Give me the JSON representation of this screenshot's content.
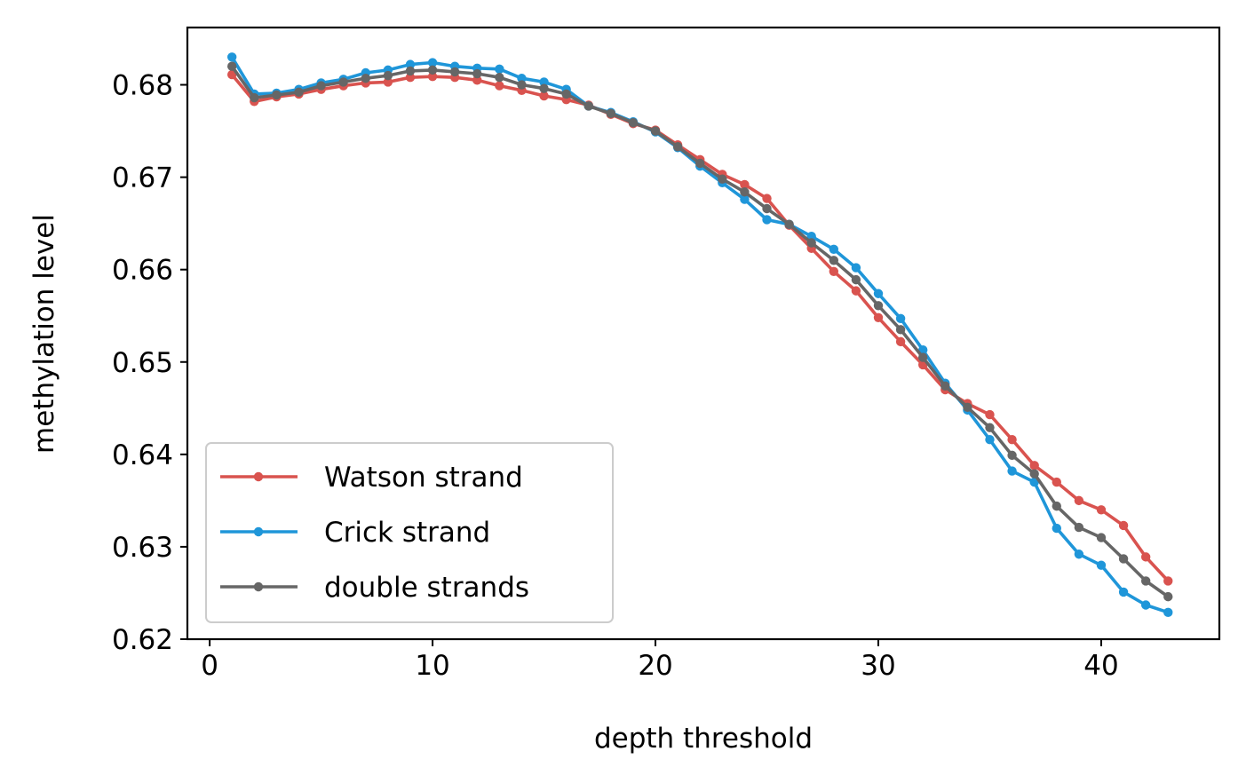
{
  "chart_data": {
    "type": "line",
    "title": "",
    "xlabel": "depth threshold",
    "ylabel": "methylation level",
    "xlim": [
      -1,
      45.3
    ],
    "ylim": [
      0.62,
      0.6862
    ],
    "xticks": [
      0,
      10,
      20,
      30,
      40
    ],
    "yticks": [
      0.62,
      0.63,
      0.64,
      0.65,
      0.66,
      0.67,
      0.68
    ],
    "grid": false,
    "legend_position": "lower-left",
    "x": [
      1,
      2,
      3,
      4,
      5,
      6,
      7,
      8,
      9,
      10,
      11,
      12,
      13,
      14,
      15,
      16,
      17,
      18,
      19,
      20,
      21,
      22,
      23,
      24,
      25,
      26,
      27,
      28,
      29,
      30,
      31,
      32,
      33,
      34,
      35,
      36,
      37,
      38,
      39,
      40,
      41,
      42,
      43
    ],
    "series": [
      {
        "name": "Watson strand",
        "color": "#d9534f",
        "values": [
          0.6811,
          0.6782,
          0.6787,
          0.679,
          0.6795,
          0.6799,
          0.6802,
          0.6803,
          0.6808,
          0.6809,
          0.6808,
          0.6805,
          0.6799,
          0.6794,
          0.6788,
          0.6784,
          0.6778,
          0.6768,
          0.6758,
          0.6751,
          0.6735,
          0.6719,
          0.6703,
          0.6692,
          0.6677,
          0.6648,
          0.6623,
          0.6598,
          0.6577,
          0.6548,
          0.6522,
          0.6497,
          0.647,
          0.6455,
          0.6443,
          0.6416,
          0.6388,
          0.637,
          0.635,
          0.634,
          0.6323,
          0.6289,
          0.6263
        ]
      },
      {
        "name": "Crick strand",
        "color": "#1f96d9",
        "values": [
          0.683,
          0.679,
          0.6791,
          0.6795,
          0.6802,
          0.6806,
          0.6813,
          0.6816,
          0.6822,
          0.6824,
          0.682,
          0.6818,
          0.6817,
          0.6807,
          0.6803,
          0.6795,
          0.6777,
          0.677,
          0.676,
          0.6749,
          0.6732,
          0.6712,
          0.6694,
          0.6676,
          0.6654,
          0.6649,
          0.6636,
          0.6622,
          0.6602,
          0.6574,
          0.6547,
          0.6513,
          0.6477,
          0.6448,
          0.6416,
          0.6382,
          0.637,
          0.632,
          0.6292,
          0.628,
          0.6251,
          0.6237,
          0.6229
        ]
      },
      {
        "name": "double strands",
        "color": "#666666",
        "values": [
          0.682,
          0.6786,
          0.6789,
          0.6792,
          0.6799,
          0.6803,
          0.6807,
          0.681,
          0.6815,
          0.6816,
          0.6814,
          0.6812,
          0.6808,
          0.68,
          0.6796,
          0.679,
          0.6777,
          0.6769,
          0.6759,
          0.675,
          0.6733,
          0.6715,
          0.6698,
          0.6684,
          0.6666,
          0.6649,
          0.6629,
          0.661,
          0.6589,
          0.6561,
          0.6535,
          0.6505,
          0.6474,
          0.6451,
          0.6429,
          0.6399,
          0.6379,
          0.6344,
          0.6321,
          0.631,
          0.6287,
          0.6263,
          0.6246
        ]
      }
    ]
  }
}
